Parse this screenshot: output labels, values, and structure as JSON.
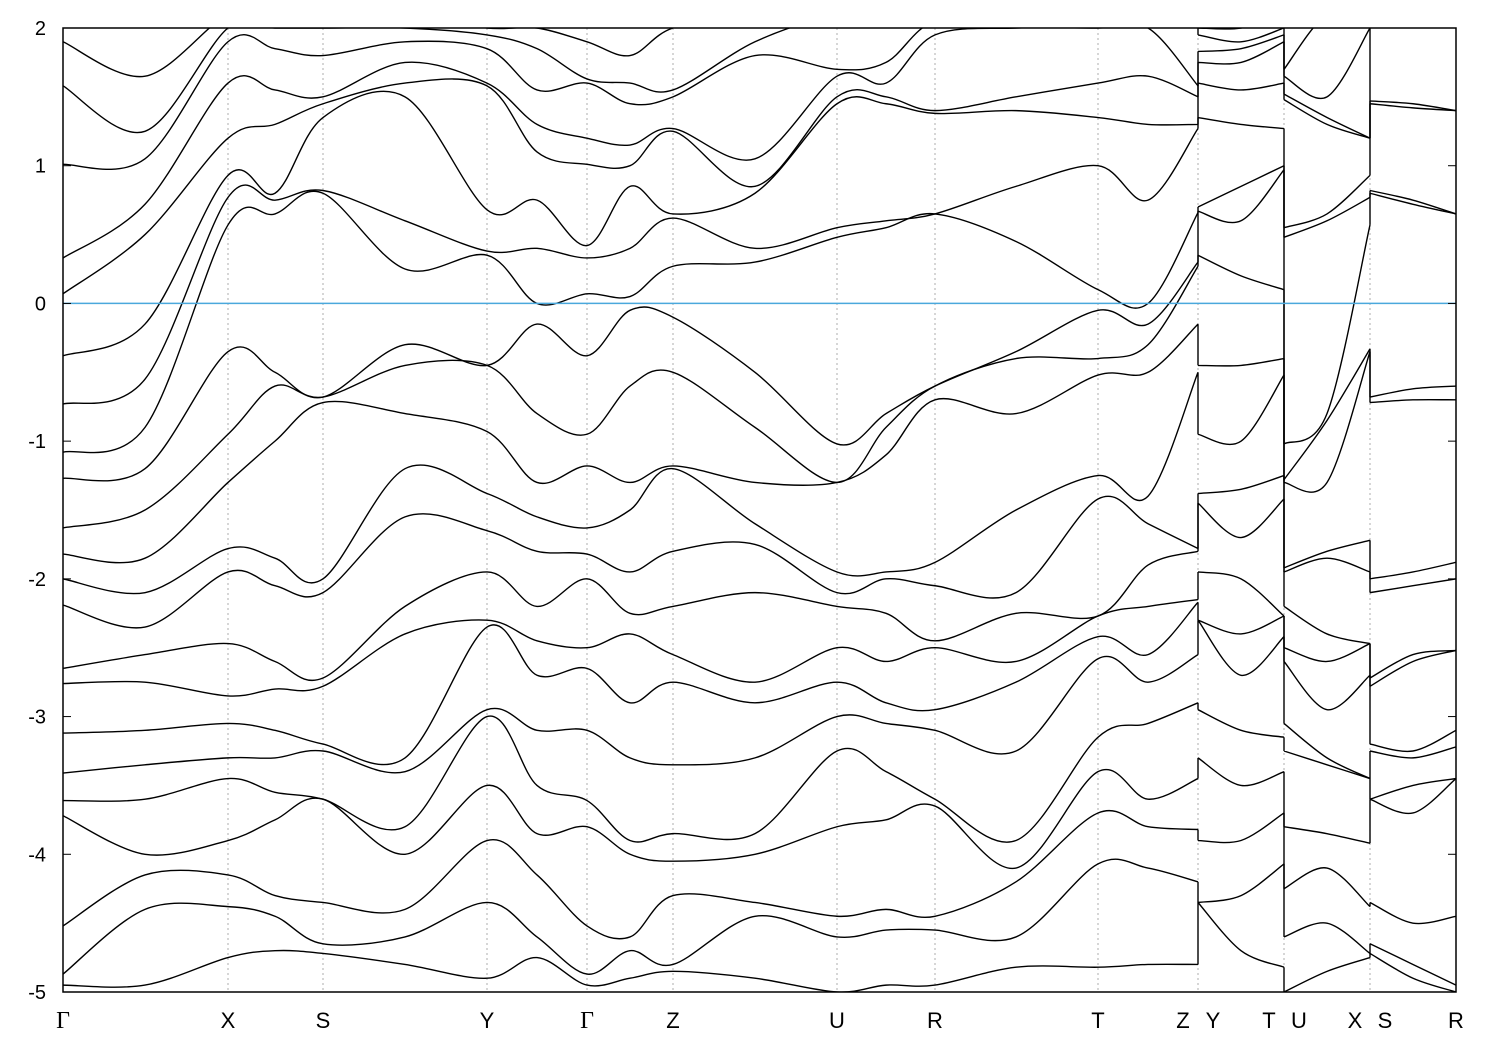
{
  "chart_data": {
    "type": "line",
    "title": "",
    "xlabel": "",
    "ylabel": "",
    "ylim": [
      -5,
      2
    ],
    "xlim": [
      0,
      1.393
    ],
    "yticks": [
      -5,
      -4,
      -3,
      -2,
      -1,
      0,
      1,
      2
    ],
    "grid": "dashed vertical lines at high-symmetry points",
    "fermi_level": 0,
    "colors": {
      "bands": "#000000",
      "fermi_line": "#4aa8dc",
      "grid": "#9a9a9a"
    },
    "high_symmetry_points": [
      {
        "label": "Γ",
        "k": 0
      },
      {
        "label": "X",
        "k": 0.165
      },
      {
        "label": "S",
        "k": 0.26
      },
      {
        "label": "Y",
        "k": 0.424
      },
      {
        "label": "Γ",
        "k": 0.524
      },
      {
        "label": "Z",
        "k": 0.61
      },
      {
        "label": "U",
        "k": 0.774
      },
      {
        "label": "R",
        "k": 0.872
      },
      {
        "label": "T",
        "k": 1.035
      },
      {
        "label": "Z",
        "k": 1.12
      },
      {
        "label": "Y",
        "k": 1.15
      },
      {
        "label": "T",
        "k": 1.206
      },
      {
        "label": "U",
        "k": 1.236
      },
      {
        "label": "X",
        "k": 1.292
      },
      {
        "label": "S",
        "k": 1.322
      },
      {
        "label": "R",
        "k": 1.393
      }
    ],
    "grid_k": [
      0.165,
      0.26,
      0.424,
      0.524,
      0.61,
      0.774,
      0.872,
      1.035,
      1.135,
      1.221,
      1.307
    ],
    "k": [
      0,
      0.082,
      0.165,
      0.212,
      0.26,
      0.342,
      0.424,
      0.474,
      0.524,
      0.567,
      0.61,
      0.692,
      0.774,
      0.823,
      0.872,
      0.953,
      1.035,
      1.085,
      1.135,
      1.135,
      1.178,
      1.221,
      1.221,
      1.264,
      1.307,
      1.307,
      1.35,
      1.393
    ],
    "energies_by_k": [
      [
        -4.95,
        -4.87,
        -4.52,
        -3.72,
        -3.61,
        -3.41,
        -3.12,
        -2.76,
        -2.65,
        -2.19,
        -2.0,
        -1.82,
        -1.63,
        -1.27,
        -1.08,
        -0.73,
        -0.38,
        0.07,
        0.33,
        1.01,
        1.58,
        1.9
      ],
      [
        -4.95,
        -4.4,
        -4.15,
        -4.0,
        -3.6,
        -3.35,
        -3.1,
        -2.75,
        -2.55,
        -2.35,
        -2.1,
        -1.85,
        -1.5,
        -1.2,
        -0.9,
        -0.55,
        -0.15,
        0.5,
        0.72,
        1.05,
        1.25,
        1.65
      ],
      [
        -4.75,
        -4.38,
        -4.15,
        -3.9,
        -3.45,
        -3.3,
        -3.05,
        -2.85,
        -2.47,
        -1.95,
        -1.78,
        -1.3,
        -0.95,
        -0.35,
        0.57,
        0.77,
        0.93,
        1.2,
        1.6,
        1.9,
        2.0,
        2.1
      ],
      [
        -4.7,
        -4.45,
        -4.3,
        -3.75,
        -3.55,
        -3.3,
        -3.1,
        -2.8,
        -2.6,
        -2.05,
        -1.85,
        -1.0,
        -0.6,
        -0.5,
        0.65,
        0.75,
        0.8,
        1.3,
        1.55,
        1.85,
        2.0,
        2.1
      ],
      [
        -4.72,
        -4.65,
        -4.35,
        -3.6,
        -3.6,
        -3.25,
        -3.2,
        -2.78,
        -2.72,
        -2.1,
        -2.0,
        -0.72,
        -0.68,
        -0.68,
        0.8,
        0.82,
        1.35,
        1.45,
        1.5,
        1.8,
        2.0,
        2.05
      ],
      [
        -4.8,
        -4.6,
        -4.4,
        -4.0,
        -3.8,
        -3.4,
        -3.3,
        -2.4,
        -2.2,
        -1.55,
        -1.2,
        -0.8,
        -0.45,
        -0.3,
        0.25,
        0.6,
        1.5,
        1.6,
        1.75,
        1.9,
        2.0,
        2.1
      ],
      [
        -4.9,
        -4.35,
        -3.9,
        -3.5,
        -3.0,
        -2.95,
        -2.35,
        -2.3,
        -1.95,
        -1.65,
        -1.38,
        -0.93,
        -0.45,
        -0.45,
        0.35,
        0.38,
        0.68,
        1.58,
        1.6,
        1.85,
        1.95,
        2.0
      ],
      [
        -4.75,
        -4.6,
        -4.15,
        -3.85,
        -3.5,
        -3.1,
        -2.7,
        -2.45,
        -2.2,
        -1.8,
        -1.55,
        -1.3,
        -0.8,
        -0.15,
        0.0,
        0.4,
        0.75,
        1.1,
        1.3,
        1.55,
        1.85,
        2.0
      ],
      [
        -4.95,
        -4.87,
        -4.52,
        -3.8,
        -3.61,
        -3.1,
        -2.65,
        -2.5,
        -2.0,
        -1.82,
        -1.63,
        -1.18,
        -0.95,
        -0.38,
        0.07,
        0.33,
        0.42,
        1.01,
        1.2,
        1.6,
        1.63,
        1.9
      ],
      [
        -4.9,
        -4.7,
        -4.6,
        -4.0,
        -3.9,
        -3.3,
        -2.9,
        -2.4,
        -2.25,
        -1.95,
        -1.5,
        -1.3,
        -0.6,
        -0.05,
        0.05,
        0.4,
        0.85,
        1.0,
        1.15,
        1.45,
        1.6,
        1.8
      ],
      [
        -4.85,
        -4.8,
        -4.3,
        -4.05,
        -3.85,
        -3.35,
        -2.75,
        -2.55,
        -2.2,
        -1.8,
        -1.2,
        -1.18,
        -0.5,
        -0.1,
        0.27,
        0.62,
        0.65,
        1.25,
        1.27,
        1.5,
        1.55,
        2.0
      ],
      [
        -4.9,
        -4.45,
        -4.35,
        -4.0,
        -3.85,
        -3.3,
        -2.9,
        -2.75,
        -2.1,
        -1.75,
        -1.6,
        -1.3,
        -0.9,
        -0.5,
        0.3,
        0.4,
        0.8,
        0.85,
        1.05,
        1.8,
        1.9,
        2.1
      ],
      [
        -5.0,
        -4.6,
        -4.45,
        -3.8,
        -3.25,
        -3.0,
        -2.75,
        -2.5,
        -2.2,
        -2.1,
        -1.95,
        -1.3,
        -1.3,
        -1.02,
        0.48,
        0.55,
        1.45,
        1.5,
        1.65,
        1.7,
        2.1,
        2.1
      ],
      [
        -4.95,
        -4.55,
        -4.4,
        -3.75,
        -3.4,
        -3.05,
        -2.9,
        -2.6,
        -2.25,
        -2.0,
        -1.95,
        -1.1,
        -0.9,
        -0.8,
        0.55,
        0.6,
        1.45,
        1.5,
        1.6,
        1.75,
        2.1,
        2.1
      ],
      [
        -4.95,
        -4.55,
        -4.45,
        -3.65,
        -3.6,
        -3.1,
        -2.95,
        -2.5,
        -2.45,
        -2.05,
        -1.88,
        -0.7,
        -0.6,
        -0.6,
        0.65,
        0.65,
        1.38,
        1.4,
        1.95,
        2.05,
        2.1,
        2.1
      ],
      [
        -4.82,
        -4.6,
        -4.2,
        -4.1,
        -3.9,
        -3.25,
        -2.75,
        -2.6,
        -2.25,
        -2.1,
        -1.5,
        -0.8,
        -0.4,
        -0.35,
        0.45,
        0.85,
        1.4,
        1.5,
        2.0,
        2.05,
        2.1,
        2.1
      ],
      [
        -4.82,
        -4.07,
        -3.7,
        -3.4,
        -3.15,
        -2.58,
        -2.42,
        -2.27,
        -2.27,
        -1.42,
        -1.25,
        -0.52,
        -0.4,
        -0.05,
        0.1,
        1.0,
        1.35,
        1.6,
        2.0,
        2.05,
        2.1,
        2.1
      ],
      [
        -4.8,
        -4.1,
        -3.8,
        -3.6,
        -3.05,
        -2.75,
        -2.55,
        -2.2,
        -1.9,
        -1.6,
        -1.4,
        -0.5,
        -0.3,
        -0.15,
        0.0,
        0.75,
        1.3,
        1.65,
        2.0,
        2.05,
        2.1,
        2.1
      ],
      [
        -4.8,
        -4.2,
        -3.82,
        -3.45,
        -2.9,
        -2.55,
        -2.17,
        -2.15,
        -1.8,
        -1.78,
        -0.5,
        -0.15,
        0.27,
        0.3,
        0.66,
        1.27,
        1.3,
        1.5,
        1.58,
        2.0,
        2.1,
        2.1
      ],
      [
        -4.35,
        -4.35,
        -3.9,
        -3.3,
        -2.95,
        -2.3,
        -2.3,
        -1.95,
        -1.45,
        -1.38,
        -0.95,
        -0.45,
        0.35,
        0.67,
        0.7,
        1.35,
        1.6,
        1.75,
        1.83,
        1.95,
        2.0,
        2.1
      ],
      [
        -4.7,
        -4.3,
        -3.9,
        -3.5,
        -3.1,
        -2.7,
        -2.4,
        -2.0,
        -1.7,
        -1.35,
        -1.0,
        -0.45,
        0.2,
        0.6,
        0.85,
        1.3,
        1.55,
        1.75,
        1.85,
        1.9,
        2.0,
        2.1
      ],
      [
        -4.82,
        -4.07,
        -3.7,
        -3.4,
        -3.15,
        -2.42,
        -2.27,
        -2.27,
        -1.42,
        -1.25,
        -0.52,
        -0.4,
        0.1,
        0.97,
        1.0,
        1.27,
        1.6,
        1.9,
        1.95,
        2.0,
        2.1,
        2.1
      ],
      [
        -5.0,
        -4.6,
        -4.25,
        -3.8,
        -3.25,
        -3.05,
        -2.6,
        -2.5,
        -2.2,
        -1.95,
        -1.92,
        -1.3,
        -1.28,
        -1.02,
        0.48,
        0.55,
        1.48,
        1.52,
        1.65,
        1.7,
        2.1,
        2.1
      ],
      [
        -4.85,
        -4.5,
        -4.1,
        -3.85,
        -3.35,
        -3.3,
        -2.95,
        -2.6,
        -2.4,
        -1.85,
        -1.8,
        -1.3,
        -0.85,
        -0.8,
        0.6,
        0.65,
        1.3,
        1.35,
        1.5,
        2.1,
        2.1,
        2.1
      ],
      [
        -4.75,
        -4.72,
        -4.38,
        -3.92,
        -3.45,
        -3.45,
        -2.7,
        -2.47,
        -2.47,
        -1.95,
        -1.72,
        -0.35,
        -0.33,
        0.57,
        0.77,
        0.93,
        1.2,
        1.2,
        2.0,
        2.1,
        2.1,
        2.1
      ],
      [
        -4.72,
        -4.65,
        -4.35,
        -3.6,
        -3.6,
        -3.25,
        -3.2,
        -2.78,
        -2.72,
        -2.1,
        -2.0,
        -0.72,
        -0.68,
        0.8,
        0.82,
        1.45,
        1.47,
        2.0,
        2.1,
        2.1,
        2.1,
        2.1
      ],
      [
        -4.9,
        -4.8,
        -4.5,
        -3.7,
        -3.5,
        -3.3,
        -3.25,
        -2.6,
        -2.55,
        -2.05,
        -1.95,
        -0.7,
        -0.62,
        0.72,
        0.75,
        1.42,
        1.45,
        2.1,
        2.1,
        2.1,
        2.1,
        2.1
      ],
      [
        -5.0,
        -4.95,
        -4.45,
        -3.45,
        -3.45,
        -3.22,
        -3.1,
        -2.52,
        -2.52,
        -2.0,
        -1.88,
        -0.7,
        -0.6,
        0.65,
        0.65,
        1.4,
        1.4,
        2.1,
        2.1,
        2.1,
        2.1,
        2.1
      ]
    ]
  }
}
